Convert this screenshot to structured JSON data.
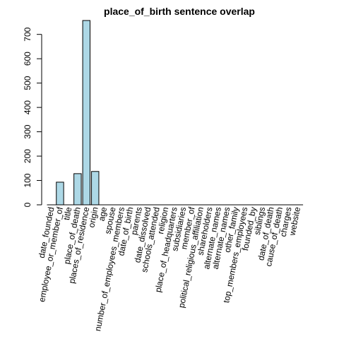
{
  "chart_data": {
    "type": "bar",
    "title": "place_of_birth sentence overlap",
    "xlabel": "",
    "ylabel": "",
    "ylim": [
      0,
      760
    ],
    "yticks": [
      0,
      100,
      200,
      300,
      400,
      500,
      600,
      700
    ],
    "categories": [
      "date_founded",
      "employee_or_member_of",
      "title",
      "place_of_death",
      "places_of_residence",
      "origin",
      "age",
      "spouse",
      "number_of_employees_members",
      "date_of_birth",
      "parents",
      "date_dissolved",
      "schools_attended",
      "religion",
      "place_of_headquarters",
      "subsidiaries",
      "member_of",
      "political_religious_affiliation",
      "shareholders",
      "alternate_names",
      "alternate_names",
      "other_family",
      "top_members_employees",
      "founded_by",
      "siblings",
      "date_of_death",
      "cause_of_death",
      "charges",
      "website"
    ],
    "values": [
      0,
      93,
      0,
      128,
      757,
      137,
      0,
      0,
      0,
      0,
      0,
      0,
      0,
      0,
      0,
      0,
      0,
      0,
      0,
      0,
      0,
      0,
      0,
      0,
      0,
      0,
      0,
      0,
      0
    ],
    "colors": {
      "bar_fill": "#add8e6",
      "bar_stroke": "#000000",
      "axis": "#000000"
    }
  }
}
